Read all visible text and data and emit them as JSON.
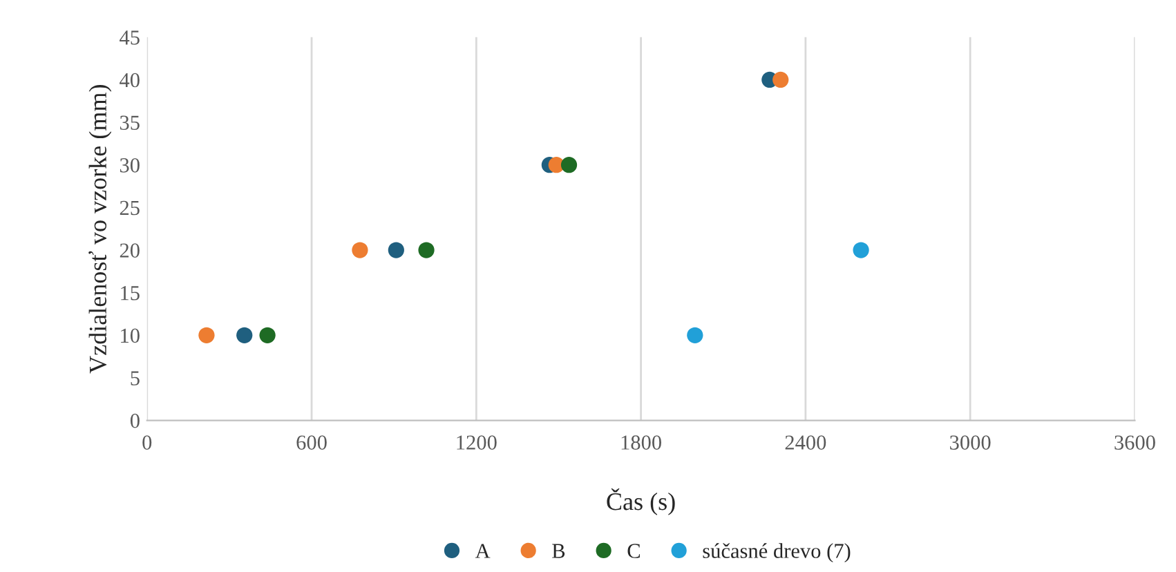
{
  "chart_data": {
    "type": "scatter",
    "xlabel": "Čas (s)",
    "ylabel": "Vzdialenosť vo vzorke (mm)",
    "series": [
      {
        "name": "A",
        "color": "#1f5f7f",
        "x": [
          355,
          908,
          1467,
          2269
        ],
        "values": [
          10,
          20,
          30,
          40
        ]
      },
      {
        "name": "B",
        "color": "#ed7d31",
        "x": [
          217,
          776,
          1492,
          2309
        ],
        "values": [
          10,
          20,
          30,
          40
        ]
      },
      {
        "name": "C",
        "color": "#1e6b24",
        "x": [
          439,
          1018,
          1538
        ],
        "values": [
          10,
          20,
          30
        ]
      },
      {
        "name": "súčasné drevo (7)",
        "color": "#21a0d8",
        "x": [
          1997,
          2602
        ],
        "values": [
          10,
          20
        ]
      }
    ],
    "xlim": [
      0,
      3600
    ],
    "xticks": [
      0,
      600,
      1200,
      1800,
      2400,
      3000,
      3600
    ],
    "ylim": [
      0,
      45
    ],
    "yticks": [
      0,
      5,
      10,
      15,
      20,
      25,
      30,
      35,
      40,
      45
    ],
    "grid": "x",
    "legend": "bottom",
    "marker": "circle"
  }
}
